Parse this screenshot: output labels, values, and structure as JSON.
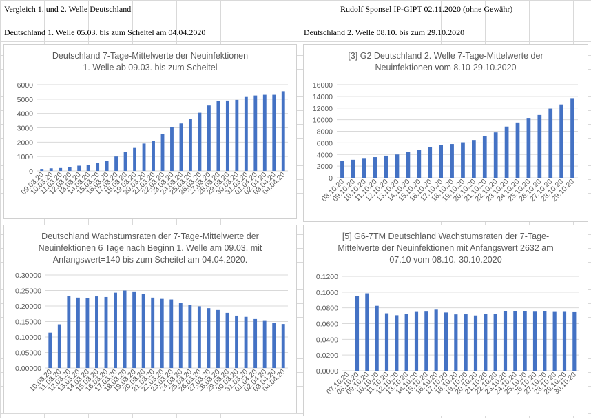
{
  "sheet": {
    "header_left": "Vergleich 1. und 2. Welle Deutschland",
    "header_right": "Rudolf Sponsel IP-GIPT 02.11.2020 (ohne Gewähr)",
    "label_left": "Deutschland 1. Welle 05.03. bis zum Scheitel am 04.04.2020",
    "label_right": "Deutschland 2. Welle 08.10. bis zum 29.10.2020"
  },
  "colors": {
    "bar": "#4472c4",
    "gridline": "#d9d9d9",
    "axis_text": "#595959"
  },
  "chart_data": [
    {
      "type": "bar",
      "title": [
        "Deutschland 7-Tage-Mittelwerte der Neuinfektionen",
        "1. Welle ab 09.03. bis zum Scheitel"
      ],
      "ylim": [
        0,
        6000
      ],
      "yticks": [
        0,
        1000,
        2000,
        3000,
        4000,
        5000,
        6000
      ],
      "ytick_labels": [
        "0",
        "1000",
        "2000",
        "3000",
        "4000",
        "5000",
        "6000"
      ],
      "categories": [
        "09.03.20",
        "10.03.20",
        "11.03.20",
        "12.03.20",
        "13.03.20",
        "14.03.20",
        "15.03.20",
        "16.03.20",
        "17.03.20",
        "18.03.20",
        "19.03.20",
        "20.03.20",
        "21.03.20",
        "22.03.20",
        "23.03.20",
        "24.03.20",
        "25.03.20",
        "26.03.20",
        "27.03.20",
        "28.03.20",
        "29.03.20",
        "30.03.20",
        "31.03.20",
        "01.04.20",
        "02.04.20",
        "03.04.20",
        "04.04.20"
      ],
      "values": [
        140,
        180,
        200,
        280,
        360,
        400,
        560,
        700,
        1000,
        1300,
        1600,
        1900,
        2100,
        2550,
        3050,
        3300,
        3600,
        4050,
        4550,
        4850,
        4900,
        4950,
        5150,
        5250,
        5300,
        5300,
        5550
      ],
      "grid": true
    },
    {
      "type": "bar",
      "title": [
        "[3] G2 Deutschland 2. Welle 7-Tage-Mittelwerte der",
        "Neuinfektionen vom 8.10-29.10.2020"
      ],
      "ylim": [
        0,
        16000
      ],
      "yticks": [
        0,
        2000,
        4000,
        6000,
        8000,
        10000,
        12000,
        14000,
        16000
      ],
      "ytick_labels": [
        "0",
        "2000",
        "4000",
        "6000",
        "8000",
        "10000",
        "12000",
        "14000",
        "16000"
      ],
      "categories": [
        "08.10.20",
        "09.10.20",
        "10.10.20",
        "11.10.20",
        "12.10.20",
        "13.10.20",
        "14.10.20",
        "15.10.20",
        "16.10.20",
        "17.10.20",
        "18.10.20",
        "19.10.20",
        "20.10.20",
        "21.10.20",
        "22.10.20",
        "23.10.20",
        "24.10.20",
        "25.10.20",
        "26.10.20",
        "27.10.20",
        "28.10.20",
        "29.10.20"
      ],
      "values": [
        2900,
        3100,
        3400,
        3550,
        3800,
        4000,
        4400,
        4800,
        5300,
        5600,
        5800,
        6100,
        6500,
        7200,
        7800,
        8800,
        9500,
        10300,
        10800,
        11900,
        12600,
        13700
      ],
      "grid": true
    },
    {
      "type": "bar",
      "title": [
        "Deutschland Wachstumsraten der 7-Tage-Mittelwerte der",
        "Neuinfektionen 6 Tage nach Beginn 1. Welle am 09.03. mit",
        "Anfangswert=140 bis zum Scheitel am 04.04.2020."
      ],
      "ylim": [
        0,
        0.3
      ],
      "yticks": [
        0,
        0.05,
        0.1,
        0.15,
        0.2,
        0.25,
        0.3
      ],
      "ytick_labels": [
        "0.00000",
        "0.05000",
        "0.10000",
        "0.15000",
        "0.20000",
        "0.25000",
        "0.30000"
      ],
      "categories": [
        "10.03.20",
        "11.03.20",
        "12.03.20",
        "13.03.20",
        "14.03.20",
        "15.03.20",
        "16.03.20",
        "17.03.20",
        "18.03.20",
        "19.03.20",
        "20.03.20",
        "21.03.20",
        "22.03.20",
        "23.03.20",
        "24.03.20",
        "25.03.20",
        "26.03.20",
        "27.03.20",
        "28.03.20",
        "29.03.20",
        "30.03.20",
        "31.03.20",
        "01.04.20",
        "02.04.20",
        "03.04.20",
        "04.04.20"
      ],
      "values": [
        0.114,
        0.141,
        0.232,
        0.227,
        0.225,
        0.231,
        0.229,
        0.243,
        0.25,
        0.247,
        0.239,
        0.227,
        0.223,
        0.221,
        0.211,
        0.203,
        0.199,
        0.193,
        0.187,
        0.178,
        0.169,
        0.165,
        0.158,
        0.152,
        0.146,
        0.142
      ],
      "grid": true
    },
    {
      "type": "bar",
      "title": [
        "[5] G6-7TM Deutschland Wachstumsraten der 7-Tage-",
        "Mittelwerte der Neuinfektionen mit Anfangswert 2632 am",
        "07.10 vom 08.10.-30.10.2020"
      ],
      "ylim": [
        0,
        0.12
      ],
      "yticks": [
        0,
        0.02,
        0.04,
        0.06,
        0.08,
        0.1,
        0.12
      ],
      "ytick_labels": [
        "0.0000",
        "0.0200",
        "0.0400",
        "0.0600",
        "0.0800",
        "0.1000",
        "0.1200"
      ],
      "categories": [
        "07.10.20",
        "08.10.20",
        "09.10.20",
        "10.10.20",
        "11.10.20",
        "12.10.20",
        "13.10.20",
        "14.10.20",
        "15.10.20",
        "16.10.20",
        "17.10.20",
        "18.10.20",
        "19.10.20",
        "20.10.20",
        "21.10.20",
        "22.10.20",
        "23.10.20",
        "24.10.20",
        "25.10.20",
        "26.10.20",
        "27.10.20",
        "28.10.20",
        "29.10.20",
        "30.10.20"
      ],
      "values": [
        null,
        0.0952,
        0.0985,
        0.0826,
        0.0731,
        0.0706,
        0.0721,
        0.0748,
        0.0752,
        0.0777,
        0.0741,
        0.0717,
        0.0718,
        0.0703,
        0.072,
        0.0722,
        0.0758,
        0.0757,
        0.0758,
        0.0751,
        0.0756,
        0.0748,
        0.0749,
        0.0745
      ],
      "grid": true
    }
  ]
}
